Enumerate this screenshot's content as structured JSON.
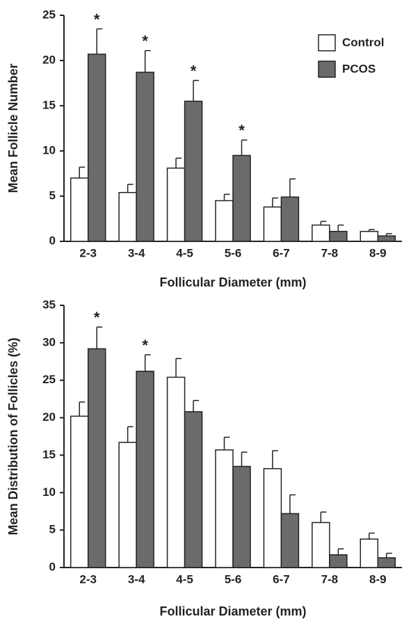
{
  "chart_data": [
    {
      "type": "bar",
      "xlabel": "Follicular Diameter (mm)",
      "ylabel": "Mean Follicle Number",
      "categories": [
        "2-3",
        "3-4",
        "4-5",
        "5-6",
        "6-7",
        "7-8",
        "8-9"
      ],
      "series": [
        {
          "name": "Control",
          "color": "#ffffff",
          "values": [
            7.0,
            5.4,
            8.1,
            4.5,
            3.8,
            1.8,
            1.1
          ],
          "errors": [
            1.2,
            0.9,
            1.1,
            0.7,
            1.0,
            0.4,
            0.2
          ],
          "labels": [
            null,
            null,
            null,
            null,
            null,
            null,
            null
          ]
        },
        {
          "name": "PCOS",
          "color": "#6b6b6b",
          "values": [
            20.7,
            18.7,
            15.5,
            9.5,
            4.9,
            1.1,
            0.6
          ],
          "errors": [
            2.8,
            2.4,
            2.3,
            1.7,
            2.0,
            0.7,
            0.25
          ],
          "labels": [
            "*",
            "*",
            "*",
            "*",
            null,
            null,
            null
          ]
        }
      ],
      "ylim": [
        0,
        25
      ],
      "yticks": [
        0,
        5,
        10,
        15,
        20,
        25
      ],
      "legend": "upper right"
    },
    {
      "type": "bar",
      "xlabel": "Follicular Diameter (mm)",
      "ylabel": "Mean Distribution of Follicles (%)",
      "categories": [
        "2-3",
        "3-4",
        "4-5",
        "5-6",
        "6-7",
        "7-8",
        "8-9"
      ],
      "series": [
        {
          "name": "Control",
          "color": "#ffffff",
          "values": [
            20.2,
            16.7,
            25.4,
            15.7,
            13.2,
            6.0,
            3.8
          ],
          "errors": [
            1.9,
            2.1,
            2.5,
            1.7,
            2.4,
            1.4,
            0.8
          ],
          "labels": [
            null,
            null,
            null,
            null,
            null,
            null,
            null
          ]
        },
        {
          "name": "PCOS",
          "color": "#6b6b6b",
          "values": [
            29.2,
            26.2,
            20.8,
            13.5,
            7.2,
            1.7,
            1.3
          ],
          "errors": [
            2.9,
            2.2,
            1.5,
            1.9,
            2.5,
            0.8,
            0.6
          ],
          "labels": [
            "*",
            "*",
            null,
            null,
            null,
            null,
            null
          ]
        }
      ],
      "ylim": [
        0,
        35
      ],
      "yticks": [
        0,
        5,
        10,
        15,
        20,
        25,
        30,
        35
      ],
      "legend": "none"
    }
  ]
}
